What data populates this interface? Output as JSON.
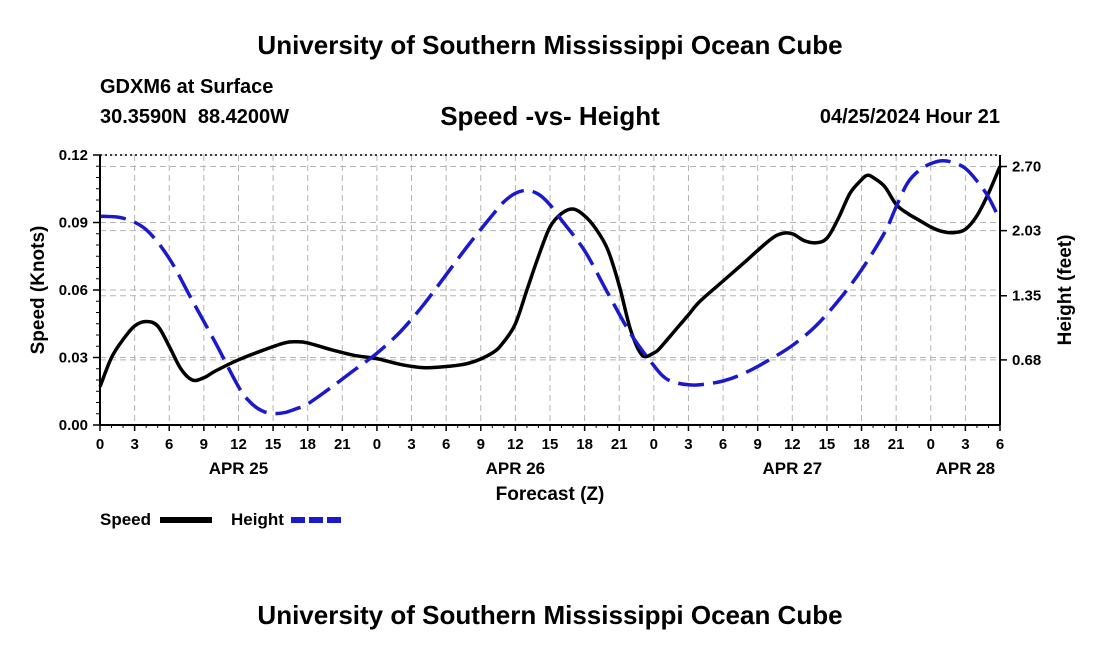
{
  "header": {
    "title": "University of Southern Mississippi Ocean Cube",
    "station": "GDXM6 at Surface",
    "location": "30.3590N  88.4200W",
    "chart_title": "Speed -vs- Height",
    "timestamp": "04/25/2024 Hour 21"
  },
  "footer": {
    "title": "University of Southern Mississippi Ocean Cube"
  },
  "colors": {
    "speed": "#000000",
    "height": "#1a1acc",
    "grid": "#b4b4b4"
  },
  "chart_data": {
    "type": "line",
    "xlabel": "Forecast (Z)",
    "ylabel_left": "Speed (Knots)",
    "ylabel_right": "Height (feet)",
    "x_unit": "hours since 04/25 00Z",
    "xlim": [
      0,
      78
    ],
    "ylim_left": [
      0,
      0.12
    ],
    "ylim_right": [
      0,
      2.82
    ],
    "x_ticks": [
      0,
      3,
      6,
      9,
      12,
      15,
      18,
      21,
      24,
      27,
      30,
      33,
      36,
      39,
      42,
      45,
      48,
      51,
      54,
      57,
      60,
      63,
      66,
      69,
      72,
      75,
      78
    ],
    "x_tick_labels": [
      "0",
      "3",
      "6",
      "9",
      "12",
      "15",
      "18",
      "21",
      "0",
      "3",
      "6",
      "9",
      "12",
      "15",
      "18",
      "21",
      "0",
      "3",
      "6",
      "9",
      "12",
      "15",
      "18",
      "21",
      "0",
      "3",
      "6"
    ],
    "date_labels": [
      {
        "label": "APR 25",
        "x": 12
      },
      {
        "label": "APR 26",
        "x": 36
      },
      {
        "label": "APR 27",
        "x": 60
      },
      {
        "label": "APR 28",
        "x": 75
      }
    ],
    "y_ticks_left": [
      0,
      0.03,
      0.06,
      0.09,
      0.12
    ],
    "y_tick_labels_left": [
      "0.00",
      "0.03",
      "0.06",
      "0.09",
      "0.12"
    ],
    "y_ticks_right": [
      0.68,
      1.35,
      2.03,
      2.7
    ],
    "y_tick_labels_right": [
      "0.68",
      "1.35",
      "2.03",
      "2.70"
    ],
    "grid": true,
    "series": [
      {
        "name": "Speed",
        "axis": "left",
        "style": "solid",
        "x": [
          0,
          1,
          2,
          3,
          4,
          5,
          6,
          7,
          8,
          9,
          10,
          12,
          14,
          16,
          17,
          18,
          20,
          22,
          24,
          26,
          28,
          30,
          32,
          34,
          35,
          36,
          37,
          38,
          39,
          40,
          41,
          42,
          43,
          44,
          45,
          46,
          47,
          48,
          48.5,
          49,
          50,
          51,
          52,
          54,
          56,
          58,
          59,
          60,
          61,
          62,
          63,
          64,
          65,
          66,
          66.5,
          67,
          68,
          69,
          70,
          71,
          72,
          73,
          74,
          75,
          76,
          77,
          78
        ],
        "values": [
          0.017,
          0.03,
          0.038,
          0.044,
          0.046,
          0.044,
          0.035,
          0.025,
          0.02,
          0.021,
          0.024,
          0.029,
          0.033,
          0.0365,
          0.037,
          0.0365,
          0.0335,
          0.031,
          0.0295,
          0.027,
          0.0255,
          0.026,
          0.0275,
          0.032,
          0.037,
          0.045,
          0.06,
          0.075,
          0.088,
          0.094,
          0.096,
          0.093,
          0.087,
          0.078,
          0.062,
          0.042,
          0.031,
          0.032,
          0.034,
          0.037,
          0.043,
          0.049,
          0.055,
          0.064,
          0.073,
          0.082,
          0.085,
          0.085,
          0.082,
          0.081,
          0.083,
          0.092,
          0.103,
          0.109,
          0.111,
          0.11,
          0.106,
          0.098,
          0.094,
          0.091,
          0.088,
          0.086,
          0.0855,
          0.087,
          0.093,
          0.103,
          0.115
        ]
      },
      {
        "name": "Height",
        "axis": "right",
        "style": "dashed",
        "x": [
          0,
          2,
          4,
          6,
          8,
          10,
          12,
          13,
          14,
          15,
          16,
          17,
          18,
          20,
          22,
          24,
          26,
          28,
          30,
          32,
          34,
          35,
          36,
          37,
          38,
          39,
          40,
          42,
          44,
          46,
          48,
          49,
          50,
          51,
          52,
          54,
          56,
          58,
          60,
          62,
          64,
          66,
          68,
          69,
          70,
          71,
          72,
          73,
          74,
          75,
          76,
          77,
          78
        ],
        "values": [
          2.18,
          2.16,
          2.04,
          1.74,
          1.3,
          0.86,
          0.4,
          0.24,
          0.15,
          0.12,
          0.13,
          0.17,
          0.22,
          0.39,
          0.57,
          0.75,
          0.97,
          1.25,
          1.57,
          1.89,
          2.19,
          2.33,
          2.42,
          2.45,
          2.41,
          2.3,
          2.14,
          1.82,
          1.38,
          0.95,
          0.62,
          0.49,
          0.44,
          0.42,
          0.42,
          0.46,
          0.55,
          0.68,
          0.83,
          1.03,
          1.3,
          1.62,
          2.01,
          2.28,
          2.53,
          2.66,
          2.73,
          2.76,
          2.74,
          2.68,
          2.55,
          2.38,
          2.14
        ]
      }
    ],
    "legend": [
      {
        "label": "Speed",
        "style": "solid"
      },
      {
        "label": "Height",
        "style": "dashed"
      }
    ],
    "legend_position": "bottom-left"
  }
}
